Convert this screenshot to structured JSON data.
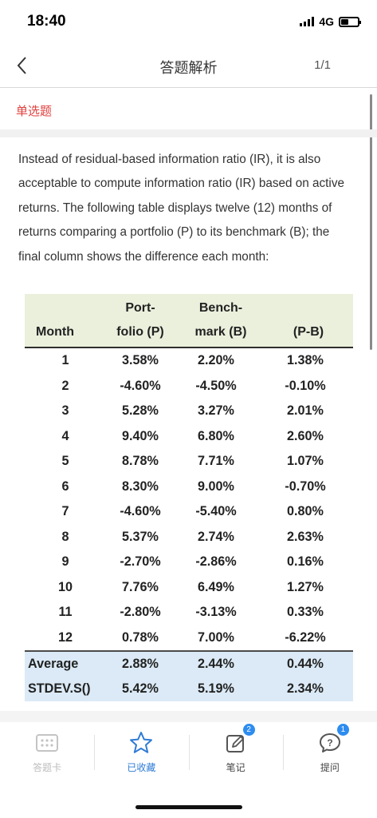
{
  "status": {
    "time": "18:40",
    "network": "4G"
  },
  "nav": {
    "title": "答题解析",
    "counter": "1/1"
  },
  "question": {
    "type": "单选题",
    "text": "Instead of residual-based information ratio (IR), it is also acceptable to compute information ratio (IR) based on active returns. The following table displays twelve (12) months of returns comparing a portfolio (P) to its benchmark (B); the final column shows the difference each month:"
  },
  "table": {
    "headers": {
      "month": "Month",
      "p_line1": "Port-",
      "p_line2": "folio (P)",
      "b_line1": "Bench-",
      "b_line2": "mark (B)",
      "diff": "(P-B)"
    },
    "rows": [
      [
        "1",
        "3.58%",
        "2.20%",
        "1.38%"
      ],
      [
        "2",
        "-4.60%",
        "-4.50%",
        "-0.10%"
      ],
      [
        "3",
        "5.28%",
        "3.27%",
        "2.01%"
      ],
      [
        "4",
        "9.40%",
        "6.80%",
        "2.60%"
      ],
      [
        "5",
        "8.78%",
        "7.71%",
        "1.07%"
      ],
      [
        "6",
        "8.30%",
        "9.00%",
        "-0.70%"
      ],
      [
        "7",
        "-4.60%",
        "-5.40%",
        "0.80%"
      ],
      [
        "8",
        "5.37%",
        "2.74%",
        "2.63%"
      ],
      [
        "9",
        "-2.70%",
        "-2.86%",
        "0.16%"
      ],
      [
        "10",
        "7.76%",
        "6.49%",
        "1.27%"
      ],
      [
        "11",
        "-2.80%",
        "-3.13%",
        "0.33%"
      ],
      [
        "12",
        "0.78%",
        "7.00%",
        "-6.22%"
      ]
    ],
    "summary": [
      [
        "Average",
        "2.88%",
        "2.44%",
        "0.44%"
      ],
      [
        "STDEV.S()",
        "5.42%",
        "5.19%",
        "2.34%"
      ]
    ]
  },
  "bottom_bar": {
    "answer_card": "答题卡",
    "favorited": "已收藏",
    "notes": "笔记",
    "notes_badge": "2",
    "ask": "提问",
    "ask_badge": "1"
  },
  "colors": {
    "accent_red": "#e0413e",
    "accent_blue": "#2e7bd6",
    "header_green": "#eaf0dc",
    "summary_blue": "#dbeaf6"
  }
}
